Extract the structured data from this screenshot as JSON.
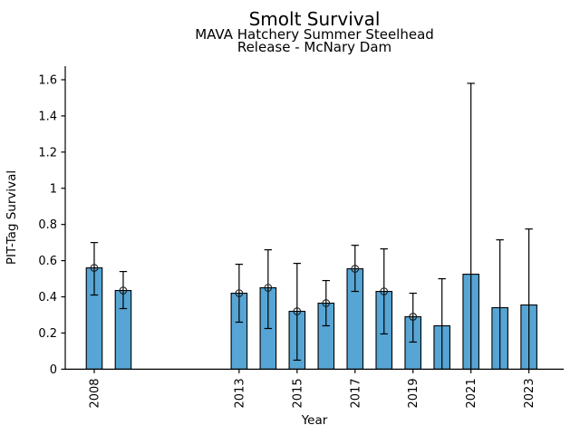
{
  "chart_data": {
    "type": "bar",
    "title": "Smolt Survival",
    "subtitle1": "MAVA Hatchery Summer Steelhead",
    "subtitle2": "Release - McNary Dam",
    "xlabel": "Year",
    "ylabel": "PIT-Tag Survival",
    "xlim": [
      2007,
      2024.2
    ],
    "ylim": [
      0,
      1.675
    ],
    "xticks": [
      2008,
      2013,
      2015,
      2017,
      2019,
      2021,
      2023
    ],
    "yticks": [
      0,
      0.2,
      0.4,
      0.6,
      0.8,
      1.0,
      1.2,
      1.4,
      1.6
    ],
    "ytick_labels": [
      "0",
      "0.2",
      "0.4",
      "0.6",
      "0.8",
      "1",
      "1.2",
      "1.4",
      "1.6"
    ],
    "grid": false,
    "legend": null,
    "bar_color": "#56a5d4",
    "bar_edge_color": "#000000",
    "error_color": "#000000",
    "axis_color": "#000000",
    "series": [
      {
        "name": "PIT-Tag Survival",
        "points": [
          {
            "year": 2008,
            "value": 0.56,
            "ci_low": 0.41,
            "ci_high": 0.7,
            "marker": true
          },
          {
            "year": 2009,
            "value": 0.435,
            "ci_low": 0.335,
            "ci_high": 0.54,
            "marker": true
          },
          {
            "year": 2013,
            "value": 0.42,
            "ci_low": 0.26,
            "ci_high": 0.58,
            "marker": true
          },
          {
            "year": 2014,
            "value": 0.45,
            "ci_low": 0.225,
            "ci_high": 0.66,
            "marker": true
          },
          {
            "year": 2015,
            "value": 0.32,
            "ci_low": 0.05,
            "ci_high": 0.585,
            "marker": true
          },
          {
            "year": 2016,
            "value": 0.365,
            "ci_low": 0.24,
            "ci_high": 0.49,
            "marker": true
          },
          {
            "year": 2017,
            "value": 0.555,
            "ci_low": 0.43,
            "ci_high": 0.685,
            "marker": true
          },
          {
            "year": 2018,
            "value": 0.43,
            "ci_low": 0.195,
            "ci_high": 0.665,
            "marker": true
          },
          {
            "year": 2019,
            "value": 0.29,
            "ci_low": 0.15,
            "ci_high": 0.42,
            "marker": true
          },
          {
            "year": 2020,
            "value": 0.24,
            "ci_low": 0.0,
            "ci_high": 0.5,
            "marker": false
          },
          {
            "year": 2021,
            "value": 0.525,
            "ci_low": 0.0,
            "ci_high": 1.58,
            "marker": false
          },
          {
            "year": 2022,
            "value": 0.34,
            "ci_low": 0.0,
            "ci_high": 0.715,
            "marker": false
          },
          {
            "year": 2023,
            "value": 0.355,
            "ci_low": 0.0,
            "ci_high": 0.775,
            "marker": false
          }
        ]
      }
    ]
  }
}
